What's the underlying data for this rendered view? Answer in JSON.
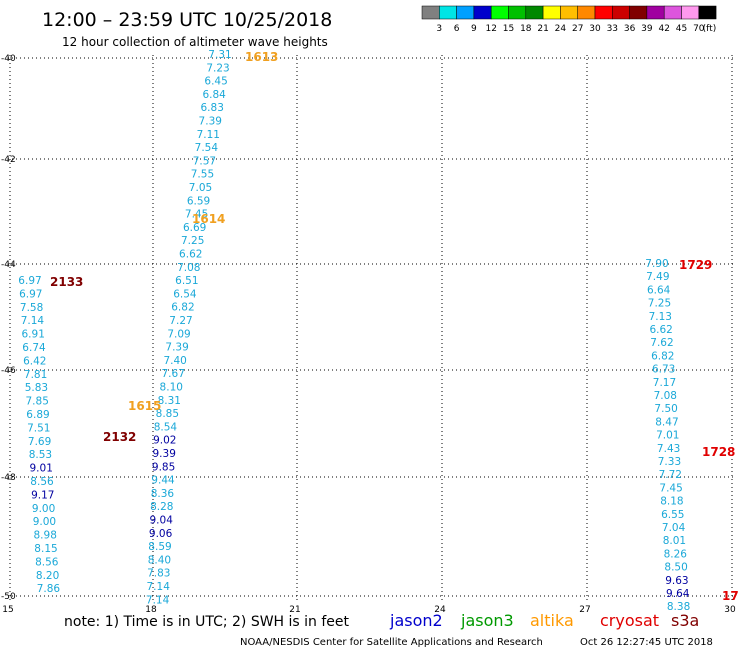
{
  "header": {
    "title": "12:00 – 23:59 UTC 10/25/2018",
    "subtitle": "12 hour collection of altimeter wave heights"
  },
  "colorbar": {
    "colors": [
      "#808080",
      "#00e5e5",
      "#00a0ff",
      "#0000cc",
      "#00ff00",
      "#00c000",
      "#008800",
      "#ffff00",
      "#ffbe00",
      "#ff8800",
      "#ff0000",
      "#cc0000",
      "#800000",
      "#a000a0",
      "#dd55dd",
      "#ff99ee",
      "#000000"
    ],
    "labels": [
      "3",
      "6",
      "9",
      "12",
      "15",
      "18",
      "21",
      "24",
      "27",
      "30",
      "33",
      "36",
      "39",
      "42",
      "45",
      "70",
      "(ft)"
    ]
  },
  "map": {
    "lon_ticks": [
      "15",
      "18",
      "21",
      "24",
      "27",
      "30"
    ],
    "lat_ticks": [
      "-40",
      "-42",
      "-44",
      "-46",
      "-48",
      "-50"
    ],
    "track_colors": {
      "cyan": "#1aa8d8",
      "navy": "#0000a0",
      "orange": "#f0a020",
      "red": "#e00000",
      "maroon": "#800000"
    },
    "tracks": [
      {
        "color": "cyan",
        "values": [
          "7.31",
          "7.23",
          "6.45",
          "6.84",
          "6.83",
          "7.39",
          "7.11",
          "7.54",
          "7.57",
          "7.55",
          "7.05",
          "6.59",
          "7.45",
          "6.69",
          "7.25",
          "6.62",
          "7.08",
          "6.51",
          "6.54",
          "6.82",
          "7.27",
          "7.09",
          "7.39",
          "7.40",
          "7.67",
          "8.10",
          "8.31",
          "8.85",
          "8.54",
          "9.02",
          "9.39",
          "9.85",
          "9.44",
          "8.36",
          "8.28",
          "9.04",
          "9.06",
          "8.59",
          "8.40",
          "7.83",
          "7.14",
          "7.14"
        ]
      },
      {
        "color": "cyan",
        "values": [
          "6.97",
          "6.97",
          "7.58",
          "7.14",
          "6.91",
          "6.74",
          "6.42",
          "7.81",
          "5.83",
          "7.85",
          "6.89",
          "7.51",
          "7.69",
          "8.53",
          "9.01",
          "8.56",
          "9.17",
          "9.00",
          "9.00",
          "8.98",
          "8.15",
          "8.56",
          "8.20",
          "7.86"
        ]
      },
      {
        "color": "cyan",
        "values": [
          "7.90",
          "7.49",
          "6.64",
          "7.25",
          "7.13",
          "6.62",
          "7.62",
          "6.82",
          "6.73",
          "7.17",
          "7.08",
          "7.50",
          "8.47",
          "7.01",
          "7.43",
          "7.33",
          "7.72",
          "7.45",
          "8.18",
          "6.55",
          "7.04",
          "8.01",
          "8.26",
          "8.50",
          "9.63",
          "9.64",
          "8.38"
        ]
      }
    ],
    "dark_values": [
      "9.02",
      "9.39",
      "9.85",
      "9.04",
      "9.06",
      "9.01",
      "9.17",
      "9.63",
      "9.64"
    ],
    "track_labels": [
      {
        "text": "1613",
        "color": "orange"
      },
      {
        "text": "1614",
        "color": "orange"
      },
      {
        "text": "1615",
        "color": "orange"
      },
      {
        "text": "2133",
        "color": "maroon"
      },
      {
        "text": "2132",
        "color": "maroon"
      },
      {
        "text": "1729",
        "color": "red"
      },
      {
        "text": "1728",
        "color": "red"
      },
      {
        "text": "17",
        "color": "red"
      }
    ]
  },
  "footer": {
    "note": "note: 1) Time is in UTC; 2) SWH is in feet",
    "legend": [
      {
        "name": "jason2",
        "color": "#0000cc"
      },
      {
        "name": "jason3",
        "color": "#009900"
      },
      {
        "name": "altika",
        "color": "#ff9900"
      },
      {
        "name": "cryosat",
        "color": "#e00000"
      },
      {
        "name": "s3a",
        "color": "#800000"
      }
    ],
    "credit": "NOAA/NESDIS Center for Satellite Applications and Research",
    "timestamp": "Oct 26 12:27:45 UTC 2018"
  }
}
